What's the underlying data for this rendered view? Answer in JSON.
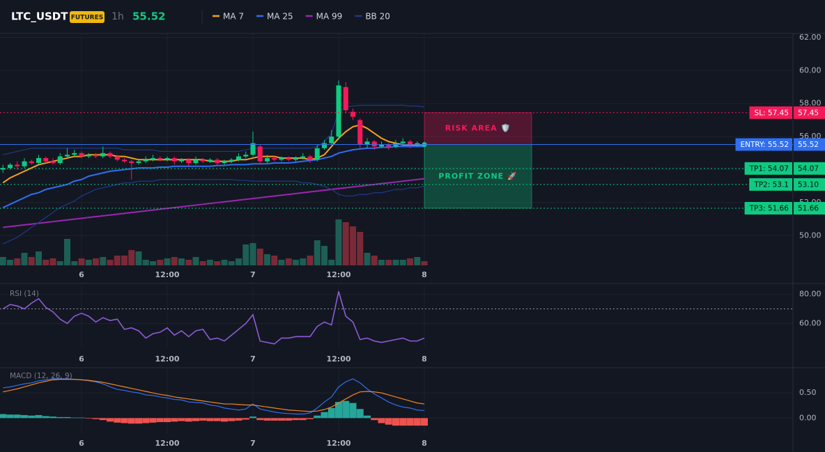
{
  "header": {
    "symbol": "LTC_USDT",
    "badge": "FUTURES",
    "interval": "1h",
    "price": 55.52
  },
  "chart_data": [
    {
      "type": "candlestick",
      "categories": [
        null,
        null,
        null,
        null,
        null,
        null,
        null,
        null,
        null,
        null,
        null,
        "6",
        null,
        null,
        null,
        null,
        null,
        null,
        null,
        null,
        null,
        null,
        null,
        "12:00",
        null,
        null,
        null,
        null,
        null,
        null,
        null,
        null,
        null,
        null,
        null,
        "7",
        null,
        null,
        null,
        null,
        null,
        null,
        null,
        null,
        null,
        null,
        null,
        "12:00",
        null,
        null,
        null,
        null,
        null,
        null,
        null,
        null,
        null,
        null,
        null,
        "8"
      ],
      "open": [
        54.0,
        54.1,
        54.3,
        54.2,
        54.5,
        54.4,
        54.7,
        54.5,
        54.4,
        54.8,
        54.9,
        55.0,
        54.8,
        54.9,
        54.8,
        55.0,
        54.8,
        54.6,
        54.5,
        54.4,
        54.5,
        54.6,
        54.7,
        54.6,
        54.7,
        54.5,
        54.6,
        54.4,
        54.6,
        54.5,
        54.6,
        54.4,
        54.5,
        54.6,
        54.8,
        54.9,
        55.4,
        54.5,
        54.7,
        54.6,
        54.7,
        54.6,
        54.7,
        54.8,
        54.6,
        55.3,
        55.6,
        56.0,
        59.0,
        57.5,
        57.0,
        55.5,
        55.7,
        55.4,
        55.5,
        55.4,
        55.6,
        55.7,
        55.5,
        55.6
      ],
      "high": [
        54.3,
        54.4,
        54.5,
        54.7,
        54.6,
        54.9,
        54.8,
        54.7,
        55.0,
        55.3,
        55.2,
        55.1,
        55.0,
        55.0,
        55.4,
        55.1,
        54.9,
        54.7,
        54.6,
        54.6,
        54.8,
        54.9,
        54.8,
        54.8,
        54.8,
        54.7,
        54.7,
        54.8,
        54.7,
        54.7,
        54.7,
        54.6,
        54.7,
        55.0,
        55.1,
        56.3,
        55.5,
        54.9,
        54.8,
        54.8,
        54.8,
        54.8,
        55.0,
        54.9,
        55.5,
        55.8,
        56.4,
        59.4,
        59.3,
        57.7,
        57.1,
        55.9,
        55.8,
        55.7,
        55.6,
        55.8,
        55.9,
        55.8,
        55.7,
        55.7
      ],
      "low": [
        53.8,
        54.0,
        54.0,
        54.1,
        54.3,
        54.3,
        54.4,
        54.3,
        54.3,
        54.7,
        54.8,
        54.7,
        54.7,
        54.7,
        54.7,
        54.7,
        54.5,
        54.4,
        53.4,
        54.3,
        54.4,
        54.5,
        54.5,
        54.5,
        54.3,
        54.4,
        54.2,
        54.3,
        54.4,
        54.4,
        54.2,
        54.3,
        54.4,
        54.5,
        54.7,
        54.8,
        54.3,
        54.4,
        54.5,
        54.5,
        54.5,
        54.5,
        54.6,
        54.4,
        54.5,
        55.2,
        55.5,
        55.8,
        57.4,
        57.0,
        55.3,
        55.3,
        55.2,
        55.3,
        55.2,
        55.3,
        55.5,
        55.3,
        55.4,
        55.4
      ],
      "close": [
        54.1,
        54.3,
        54.2,
        54.5,
        54.4,
        54.7,
        54.5,
        54.4,
        54.8,
        54.9,
        55.0,
        54.8,
        54.9,
        54.8,
        55.0,
        54.8,
        54.6,
        54.5,
        54.4,
        54.5,
        54.6,
        54.7,
        54.6,
        54.7,
        54.5,
        54.6,
        54.4,
        54.6,
        54.5,
        54.6,
        54.4,
        54.5,
        54.6,
        54.8,
        54.9,
        55.6,
        54.5,
        54.7,
        54.6,
        54.7,
        54.6,
        54.7,
        54.8,
        54.6,
        55.3,
        55.6,
        56.0,
        59.1,
        57.6,
        57.2,
        55.5,
        55.7,
        55.4,
        55.5,
        55.4,
        55.6,
        55.7,
        55.5,
        55.6,
        55.52
      ],
      "volume": [
        12,
        8,
        10,
        18,
        12,
        20,
        8,
        10,
        6,
        38,
        6,
        10,
        8,
        10,
        12,
        8,
        14,
        14,
        22,
        20,
        8,
        6,
        8,
        10,
        12,
        10,
        8,
        12,
        6,
        8,
        6,
        8,
        6,
        10,
        30,
        32,
        24,
        16,
        14,
        8,
        10,
        8,
        10,
        14,
        36,
        28,
        8,
        66,
        62,
        56,
        48,
        18,
        14,
        8,
        8,
        8,
        8,
        10,
        12,
        6
      ],
      "colors": {
        "up": "#0ecb81",
        "down": "#f6195a",
        "volume_up": "#1d5e55",
        "volume_down": "#7a2a37"
      },
      "series": [
        {
          "name": "MA 7",
          "color": "#f7a21b",
          "values": [
            53.2,
            53.5,
            53.7,
            53.9,
            54.1,
            54.3,
            54.4,
            54.5,
            54.6,
            54.7,
            54.8,
            54.8,
            54.9,
            54.9,
            54.9,
            54.9,
            54.8,
            54.8,
            54.7,
            54.6,
            54.6,
            54.6,
            54.6,
            54.6,
            54.6,
            54.6,
            54.6,
            54.6,
            54.6,
            54.5,
            54.5,
            54.5,
            54.5,
            54.6,
            54.6,
            54.7,
            54.8,
            54.8,
            54.8,
            54.7,
            54.7,
            54.7,
            54.7,
            54.6,
            54.7,
            54.9,
            55.4,
            55.9,
            56.3,
            56.6,
            56.7,
            56.5,
            56.2,
            55.9,
            55.7,
            55.6,
            55.5,
            55.5,
            55.5,
            55.5
          ]
        },
        {
          "name": "MA 25",
          "color": "#2f6ff0",
          "values": [
            51.7,
            51.9,
            52.1,
            52.3,
            52.5,
            52.6,
            52.8,
            52.9,
            53.0,
            53.1,
            53.3,
            53.4,
            53.6,
            53.7,
            53.8,
            53.9,
            53.95,
            54.0,
            54.05,
            54.1,
            54.1,
            54.1,
            54.15,
            54.15,
            54.2,
            54.2,
            54.2,
            54.2,
            54.2,
            54.2,
            54.25,
            54.25,
            54.3,
            54.3,
            54.3,
            54.35,
            54.35,
            54.35,
            54.4,
            54.4,
            54.4,
            54.45,
            54.5,
            54.55,
            54.6,
            54.7,
            54.8,
            55.0,
            55.1,
            55.2,
            55.25,
            55.3,
            55.3,
            55.35,
            55.35,
            55.4,
            55.4,
            55.4,
            55.4,
            55.4
          ]
        },
        {
          "name": "MA 99",
          "color": "#9c27b0",
          "values": [
            50.5,
            50.55,
            50.6,
            50.65,
            50.7,
            50.75,
            50.8,
            50.85,
            50.9,
            50.95,
            51.0,
            51.05,
            51.1,
            51.15,
            51.2,
            51.25,
            51.3,
            51.35,
            51.4,
            51.45,
            51.5,
            51.55,
            51.6,
            51.65,
            51.7,
            51.75,
            51.8,
            51.85,
            51.9,
            51.95,
            52.0,
            52.05,
            52.1,
            52.15,
            52.2,
            52.25,
            52.3,
            52.35,
            52.4,
            52.45,
            52.5,
            52.55,
            52.6,
            52.65,
            52.7,
            52.75,
            52.8,
            52.85,
            52.9,
            52.95,
            53.0,
            53.05,
            53.1,
            53.15,
            53.2,
            53.25,
            53.3,
            53.35,
            53.4,
            53.45
          ]
        },
        {
          "name": "BB 20",
          "color": "#1e3a8a",
          "upper": [
            54.9,
            55.0,
            55.1,
            55.2,
            55.3,
            55.3,
            55.3,
            55.3,
            55.3,
            55.3,
            55.3,
            55.3,
            55.3,
            55.3,
            55.3,
            55.3,
            55.3,
            55.2,
            55.2,
            55.2,
            55.2,
            55.2,
            55.1,
            55.1,
            55.1,
            55.1,
            55.1,
            55.1,
            55.1,
            55.1,
            55.1,
            55.1,
            55.1,
            55.1,
            55.2,
            55.3,
            55.3,
            55.3,
            55.3,
            55.3,
            55.3,
            55.3,
            55.3,
            55.3,
            55.4,
            55.7,
            56.2,
            57.5,
            57.8,
            57.85,
            57.9,
            57.9,
            57.9,
            57.9,
            57.9,
            57.9,
            57.9,
            57.85,
            57.85,
            57.8
          ],
          "lower": [
            49.5,
            49.7,
            49.9,
            50.2,
            50.5,
            50.8,
            51.1,
            51.4,
            51.7,
            51.9,
            52.1,
            52.4,
            52.6,
            52.8,
            52.9,
            53.0,
            53.1,
            53.2,
            53.2,
            53.3,
            53.3,
            53.3,
            53.4,
            53.4,
            53.4,
            53.4,
            53.4,
            53.4,
            53.4,
            53.4,
            53.4,
            53.4,
            53.4,
            53.35,
            53.35,
            53.3,
            53.3,
            53.3,
            53.3,
            53.3,
            53.3,
            53.3,
            53.2,
            53.2,
            53.1,
            53.0,
            52.8,
            52.5,
            52.4,
            52.4,
            52.5,
            52.5,
            52.6,
            52.6,
            52.7,
            52.8,
            52.8,
            52.9,
            52.9,
            53.0
          ]
        }
      ],
      "levels": [
        {
          "label": "SL: 57.45",
          "value": 57.45,
          "color": "#f6195a",
          "dash": true
        },
        {
          "label": "ENTRY: 55.52",
          "value": 55.52,
          "color": "#2f6ff0",
          "dash": false
        },
        {
          "label": "TP1: 54.07",
          "value": 54.07,
          "color": "#0ecb81",
          "dash": true
        },
        {
          "label": "TP2: 53.1",
          "value": 53.1,
          "value_label": "53.10",
          "color": "#0ecb81",
          "dash": true
        },
        {
          "label": "TP3: 51.66",
          "value": 51.66,
          "color": "#0ecb81",
          "dash": true
        }
      ],
      "zones": [
        {
          "label": "RISK AREA 🛡️",
          "from": 55.52,
          "to": 57.45,
          "color": "#f6195a"
        },
        {
          "label": "PROFIT ZONE 🚀",
          "from": 51.66,
          "to": 55.52,
          "color": "#0ecb81"
        }
      ],
      "ylim": [
        48.2,
        62.25
      ],
      "yticks": [
        {
          "value": 62,
          "label": "62.00"
        },
        {
          "value": 60,
          "label": "60.00"
        },
        {
          "value": 58,
          "label": "58.00"
        },
        {
          "value": 56,
          "label": "56.00"
        },
        {
          "value": 54,
          "label": "54.00"
        },
        {
          "value": 52,
          "label": "52.00"
        },
        {
          "value": 50,
          "label": "50.00"
        }
      ],
      "grid": true
    },
    {
      "type": "line",
      "title": "RSI (14)",
      "categories": [
        null,
        null,
        null,
        null,
        null,
        null,
        null,
        null,
        null,
        null,
        null,
        "6",
        null,
        null,
        null,
        null,
        null,
        null,
        null,
        null,
        null,
        null,
        null,
        "12:00",
        null,
        null,
        null,
        null,
        null,
        null,
        null,
        null,
        null,
        null,
        null,
        "7",
        null,
        null,
        null,
        null,
        null,
        null,
        null,
        null,
        null,
        null,
        null,
        "12:00",
        null,
        null,
        null,
        null,
        null,
        null,
        null,
        null,
        null,
        null,
        null,
        "8"
      ],
      "values": [
        70,
        73,
        72,
        70,
        74,
        77,
        71,
        68,
        63,
        60,
        65,
        67,
        65,
        61,
        64,
        62,
        63,
        56,
        57,
        55,
        50,
        53,
        54,
        57,
        52,
        55,
        51,
        55,
        56,
        49,
        50,
        48,
        52,
        56,
        60,
        66,
        48,
        47,
        46,
        50,
        50,
        51,
        51,
        51,
        58,
        61,
        59,
        82,
        65,
        61,
        49,
        50,
        48,
        47,
        48,
        49,
        50,
        48,
        48,
        50
      ],
      "color": "#8e5bd6",
      "level": 70,
      "ylim": [
        44,
        86
      ],
      "yticks": [
        {
          "value": 80,
          "label": "80.00"
        },
        {
          "value": 60,
          "label": "60.00"
        }
      ],
      "grid": true
    },
    {
      "type": "macd",
      "title": "MACD (12, 26, 9)",
      "categories": [
        null,
        null,
        null,
        null,
        null,
        null,
        null,
        null,
        null,
        null,
        null,
        "6",
        null,
        null,
        null,
        null,
        null,
        null,
        null,
        null,
        null,
        null,
        null,
        "12:00",
        null,
        null,
        null,
        null,
        null,
        null,
        null,
        null,
        null,
        null,
        null,
        "7",
        null,
        null,
        null,
        null,
        null,
        null,
        null,
        null,
        null,
        null,
        null,
        "12:00",
        null,
        null,
        null,
        null,
        null,
        null,
        null,
        null,
        null,
        null,
        null,
        "8"
      ],
      "macd": [
        0.6,
        0.62,
        0.65,
        0.68,
        0.7,
        0.74,
        0.76,
        0.78,
        0.78,
        0.78,
        0.77,
        0.76,
        0.74,
        0.72,
        0.68,
        0.62,
        0.57,
        0.55,
        0.52,
        0.5,
        0.46,
        0.45,
        0.42,
        0.4,
        0.37,
        0.36,
        0.32,
        0.31,
        0.3,
        0.26,
        0.24,
        0.2,
        0.18,
        0.16,
        0.18,
        0.28,
        0.18,
        0.15,
        0.12,
        0.1,
        0.09,
        0.08,
        0.08,
        0.1,
        0.2,
        0.32,
        0.42,
        0.62,
        0.72,
        0.78,
        0.7,
        0.58,
        0.48,
        0.4,
        0.32,
        0.26,
        0.22,
        0.2,
        0.16,
        0.15
      ],
      "signal": [
        0.52,
        0.55,
        0.58,
        0.62,
        0.66,
        0.7,
        0.73,
        0.76,
        0.77,
        0.77,
        0.77,
        0.76,
        0.75,
        0.73,
        0.71,
        0.68,
        0.65,
        0.62,
        0.59,
        0.56,
        0.53,
        0.5,
        0.47,
        0.45,
        0.42,
        0.4,
        0.38,
        0.36,
        0.34,
        0.32,
        0.3,
        0.28,
        0.28,
        0.27,
        0.26,
        0.26,
        0.24,
        0.22,
        0.2,
        0.18,
        0.16,
        0.15,
        0.14,
        0.13,
        0.14,
        0.17,
        0.22,
        0.3,
        0.38,
        0.46,
        0.52,
        0.53,
        0.52,
        0.5,
        0.46,
        0.42,
        0.38,
        0.34,
        0.3,
        0.28
      ],
      "histogram": [
        0.08,
        0.07,
        0.07,
        0.06,
        0.05,
        0.06,
        0.04,
        0.03,
        0.02,
        0.02,
        0.01,
        0.01,
        -0.01,
        -0.02,
        -0.04,
        -0.07,
        -0.09,
        -0.1,
        -0.11,
        -0.11,
        -0.1,
        -0.09,
        -0.08,
        -0.08,
        -0.07,
        -0.06,
        -0.07,
        -0.06,
        -0.05,
        -0.06,
        -0.06,
        -0.07,
        -0.06,
        -0.05,
        -0.03,
        0.03,
        -0.04,
        -0.05,
        -0.05,
        -0.05,
        -0.05,
        -0.04,
        -0.04,
        -0.02,
        0.05,
        0.12,
        0.2,
        0.32,
        0.34,
        0.3,
        0.18,
        0.05,
        -0.04,
        -0.1,
        -0.13,
        -0.15,
        -0.15,
        -0.15,
        -0.15,
        -0.15
      ],
      "colors": {
        "macd": "#2f6ff0",
        "signal": "#f5861f",
        "up": "#26a69a",
        "down": "#ef5350"
      },
      "ylim": [
        -0.3,
        1.0
      ],
      "yticks": [
        {
          "value": 0.5,
          "label": "0.50"
        },
        {
          "value": 0,
          "label": "0.00"
        }
      ],
      "grid": true
    }
  ]
}
